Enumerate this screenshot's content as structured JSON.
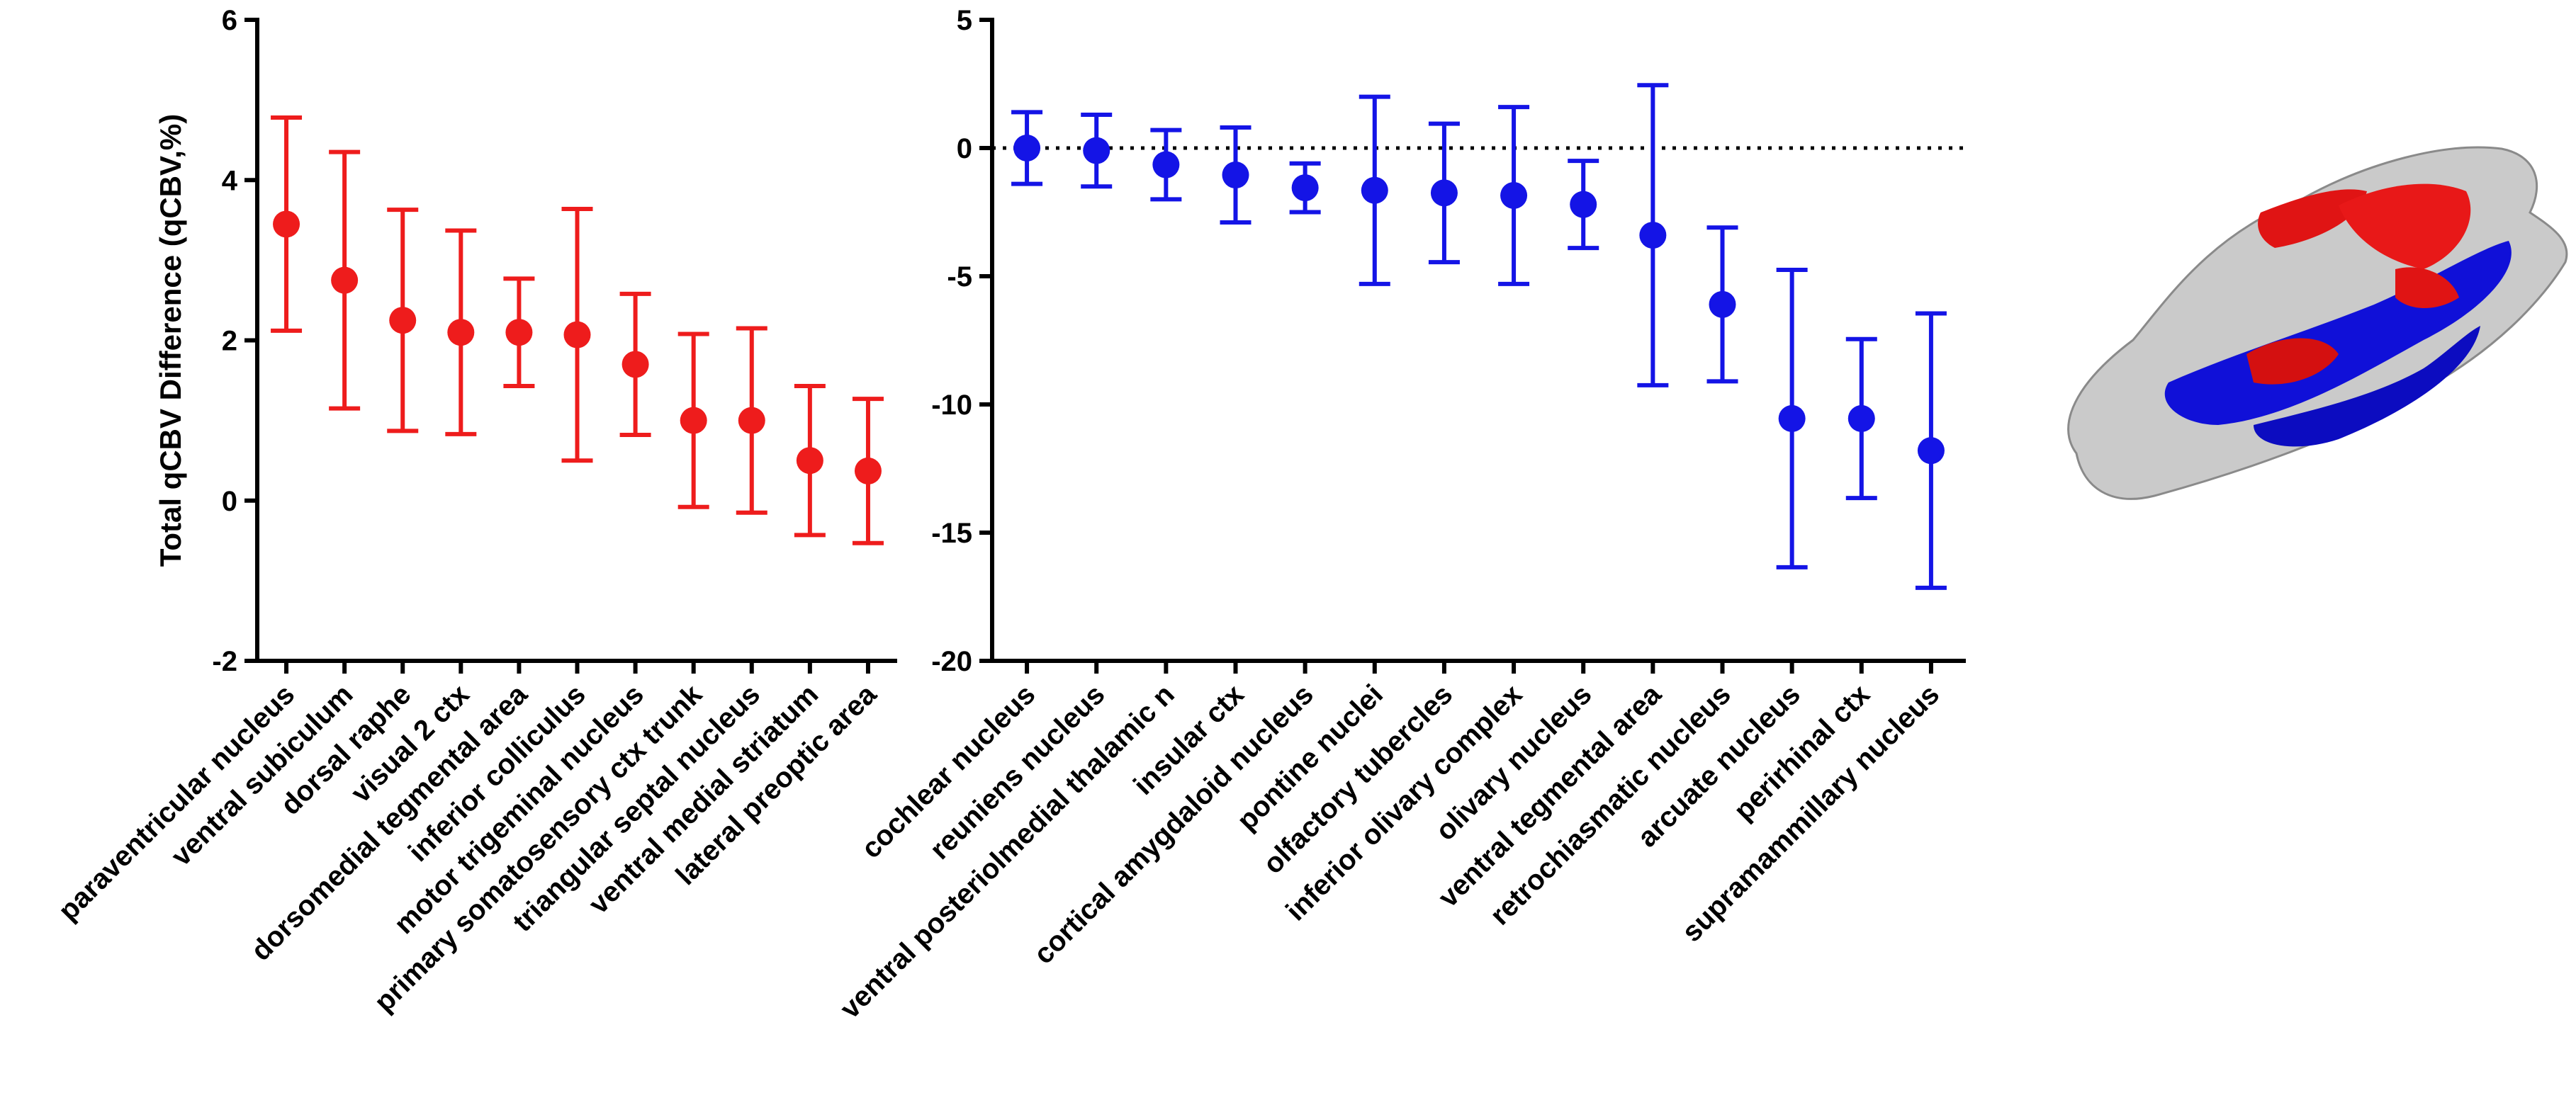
{
  "chart_data": [
    {
      "type": "errorbar",
      "y_label": "Total qCBV Difference (qCBV,%)",
      "color": "#ee1c1c",
      "categories": [
        "paraventricular nucleus",
        "ventral subiculum",
        "dorsal raphe",
        "visual 2 ctx",
        "dorsomedial tegmental area",
        "inferior colliculus",
        "motor trigeminal nucleus",
        "primary somatosensory ctx trunk",
        "triangular septal nucleus",
        "ventral medial striatum",
        "lateral preoptic area"
      ],
      "values": [
        3.45,
        2.75,
        2.25,
        2.1,
        2.1,
        2.07,
        1.7,
        1.0,
        1.0,
        0.5,
        0.37
      ],
      "errors": [
        1.33,
        1.6,
        1.38,
        1.27,
        0.67,
        1.57,
        0.88,
        1.08,
        1.15,
        0.93,
        0.9
      ],
      "ylim": [
        -2,
        6
      ],
      "yticks": [
        -2,
        0,
        2,
        4,
        6
      ]
    },
    {
      "type": "errorbar",
      "color": "#1414e6",
      "categories": [
        "cochlear nucleus",
        "reuniens nucleus",
        "ventral posteriolmedial thalamic n",
        "insular ctx",
        "cortical amygdaloid nucleus",
        "pontine nuclei",
        "olfactory tubercles",
        "inferior olivary complex",
        "olivary nucleus",
        "ventral tegmental area",
        "retrochiasmatic nucleus",
        "arcuate nucleus",
        "perirhinal ctx",
        "supramammillary nucleus"
      ],
      "values": [
        0.0,
        -0.1,
        -0.65,
        -1.05,
        -1.55,
        -1.65,
        -1.75,
        -1.85,
        -2.2,
        -3.4,
        -6.1,
        -10.55,
        -10.55,
        -11.8
      ],
      "errors": [
        1.4,
        1.4,
        1.35,
        1.85,
        0.95,
        3.65,
        2.7,
        3.45,
        1.7,
        5.85,
        3.0,
        5.8,
        3.1,
        5.35
      ],
      "ylim": [
        -20,
        5
      ],
      "yticks": [
        -20,
        -15,
        -10,
        -5,
        0,
        5
      ],
      "reference_line": 0
    }
  ]
}
